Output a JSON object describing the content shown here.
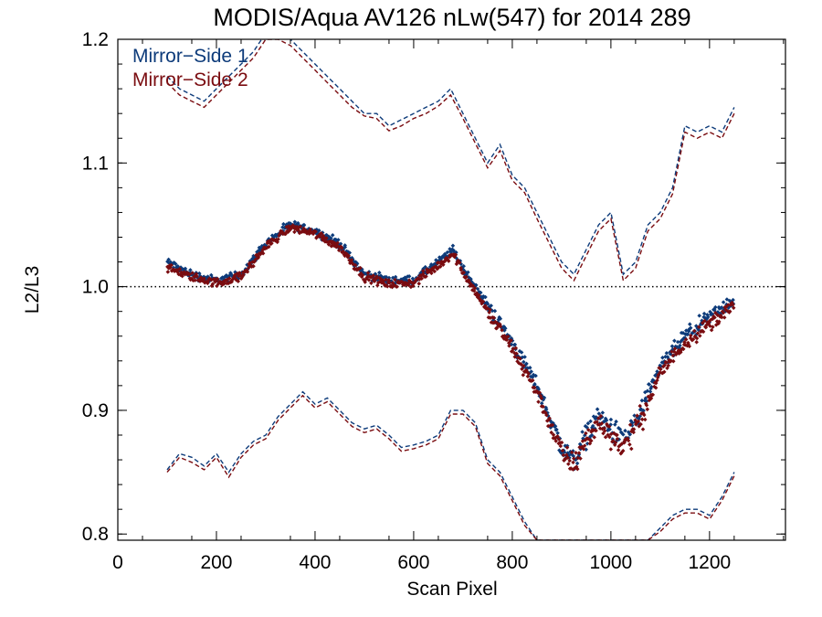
{
  "chart_data": {
    "type": "scatter",
    "title": "MODIS/Aqua AV126 nLw(547) for 2014 289",
    "xlabel": "Scan Pixel",
    "ylabel": "L2/L3",
    "xlim": [
      0,
      1354
    ],
    "ylim": [
      0.795,
      1.2
    ],
    "x_ticks": [
      0,
      200,
      400,
      600,
      800,
      1000,
      1200
    ],
    "x_tick_labels": [
      "0",
      "200",
      "400",
      "600",
      "800",
      "1000",
      "1200"
    ],
    "y_ticks": [
      0.8,
      0.9,
      1.0,
      1.1,
      1.2
    ],
    "y_tick_labels": [
      "0.8",
      "0.9",
      "1.0",
      "1.1",
      "1.2"
    ],
    "reference_line": {
      "y": 1.0,
      "style": "dotted"
    },
    "legend_position": "top-left",
    "series": [
      {
        "name": "Mirror−Side 1",
        "color": "#0d3b7a",
        "mean": {
          "x": [
            100,
            150,
            200,
            250,
            300,
            350,
            400,
            450,
            500,
            550,
            600,
            650,
            680,
            700,
            750,
            800,
            850,
            900,
            925,
            950,
            975,
            1000,
            1025,
            1050,
            1075,
            1100,
            1150,
            1200,
            1250
          ],
          "y": [
            1.02,
            1.01,
            1.005,
            1.01,
            1.035,
            1.05,
            1.045,
            1.035,
            1.01,
            1.005,
            1.005,
            1.02,
            1.03,
            1.015,
            0.985,
            0.955,
            0.92,
            0.87,
            0.86,
            0.88,
            0.895,
            0.885,
            0.875,
            0.89,
            0.91,
            0.935,
            0.96,
            0.975,
            0.99
          ]
        },
        "upper": {
          "x": [
            100,
            125,
            150,
            175,
            200,
            225,
            250,
            275,
            300,
            325,
            350,
            375,
            400,
            425,
            450,
            475,
            500,
            525,
            550,
            575,
            600,
            625,
            650,
            675,
            700,
            725,
            750,
            775,
            800,
            825,
            850,
            875,
            900,
            925,
            950,
            975,
            1000,
            1025,
            1050,
            1075,
            1100,
            1125,
            1150,
            1175,
            1200,
            1225,
            1250
          ],
          "y": [
            1.17,
            1.16,
            1.155,
            1.15,
            1.16,
            1.17,
            1.18,
            1.19,
            1.205,
            1.205,
            1.2,
            1.19,
            1.18,
            1.17,
            1.16,
            1.15,
            1.14,
            1.14,
            1.13,
            1.135,
            1.14,
            1.145,
            1.15,
            1.16,
            1.14,
            1.12,
            1.1,
            1.115,
            1.09,
            1.08,
            1.06,
            1.04,
            1.02,
            1.01,
            1.03,
            1.05,
            1.06,
            1.01,
            1.02,
            1.05,
            1.06,
            1.08,
            1.13,
            1.125,
            1.13,
            1.125,
            1.145
          ]
        },
        "lower": {
          "x": [
            100,
            125,
            150,
            175,
            200,
            225,
            250,
            275,
            300,
            325,
            350,
            375,
            400,
            425,
            450,
            475,
            500,
            525,
            550,
            575,
            600,
            625,
            650,
            675,
            700,
            725,
            750,
            775,
            800,
            825,
            850,
            1075,
            1100,
            1125,
            1150,
            1175,
            1200,
            1225,
            1250
          ],
          "y": [
            0.852,
            0.865,
            0.862,
            0.855,
            0.865,
            0.85,
            0.865,
            0.875,
            0.88,
            0.895,
            0.905,
            0.915,
            0.905,
            0.91,
            0.9,
            0.89,
            0.885,
            0.888,
            0.88,
            0.87,
            0.872,
            0.875,
            0.88,
            0.9,
            0.9,
            0.89,
            0.86,
            0.85,
            0.83,
            0.81,
            0.795,
            0.795,
            0.805,
            0.815,
            0.82,
            0.82,
            0.815,
            0.83,
            0.85
          ]
        }
      },
      {
        "name": "Mirror−Side 2",
        "color": "#7a0c10",
        "mean": {
          "x": [
            100,
            150,
            200,
            250,
            300,
            350,
            400,
            450,
            500,
            550,
            600,
            650,
            680,
            700,
            750,
            800,
            850,
            900,
            925,
            950,
            975,
            1000,
            1025,
            1050,
            1075,
            1100,
            1150,
            1200,
            1250
          ],
          "y": [
            1.015,
            1.008,
            1.003,
            1.008,
            1.032,
            1.048,
            1.043,
            1.032,
            1.008,
            1.002,
            1.003,
            1.017,
            1.027,
            1.012,
            0.98,
            0.95,
            0.915,
            0.866,
            0.855,
            0.876,
            0.89,
            0.88,
            0.87,
            0.886,
            0.905,
            0.93,
            0.955,
            0.97,
            0.985
          ]
        },
        "upper": {
          "x": [
            100,
            125,
            150,
            175,
            200,
            225,
            250,
            275,
            300,
            325,
            350,
            375,
            400,
            425,
            450,
            475,
            500,
            525,
            550,
            575,
            600,
            625,
            650,
            675,
            700,
            725,
            750,
            775,
            800,
            825,
            850,
            875,
            900,
            925,
            950,
            975,
            1000,
            1025,
            1050,
            1075,
            1100,
            1125,
            1150,
            1175,
            1200,
            1225,
            1250
          ],
          "y": [
            1.165,
            1.155,
            1.15,
            1.145,
            1.155,
            1.165,
            1.175,
            1.185,
            1.2,
            1.2,
            1.195,
            1.185,
            1.175,
            1.165,
            1.155,
            1.145,
            1.138,
            1.136,
            1.126,
            1.13,
            1.136,
            1.14,
            1.146,
            1.155,
            1.136,
            1.116,
            1.096,
            1.11,
            1.086,
            1.076,
            1.055,
            1.035,
            1.015,
            1.005,
            1.025,
            1.045,
            1.055,
            1.005,
            1.015,
            1.045,
            1.055,
            1.075,
            1.125,
            1.12,
            1.125,
            1.12,
            1.14
          ]
        },
        "lower": {
          "x": [
            100,
            125,
            150,
            175,
            200,
            225,
            250,
            275,
            300,
            325,
            350,
            375,
            400,
            425,
            450,
            475,
            500,
            525,
            550,
            575,
            600,
            625,
            650,
            675,
            700,
            725,
            750,
            775,
            800,
            825,
            850,
            1075,
            1100,
            1125,
            1150,
            1175,
            1200,
            1225,
            1250
          ],
          "y": [
            0.85,
            0.862,
            0.858,
            0.852,
            0.862,
            0.846,
            0.862,
            0.872,
            0.877,
            0.892,
            0.902,
            0.912,
            0.902,
            0.907,
            0.897,
            0.887,
            0.882,
            0.885,
            0.877,
            0.867,
            0.869,
            0.872,
            0.877,
            0.897,
            0.897,
            0.887,
            0.857,
            0.847,
            0.827,
            0.807,
            0.795,
            0.795,
            0.802,
            0.812,
            0.817,
            0.817,
            0.812,
            0.827,
            0.847
          ]
        }
      }
    ]
  }
}
